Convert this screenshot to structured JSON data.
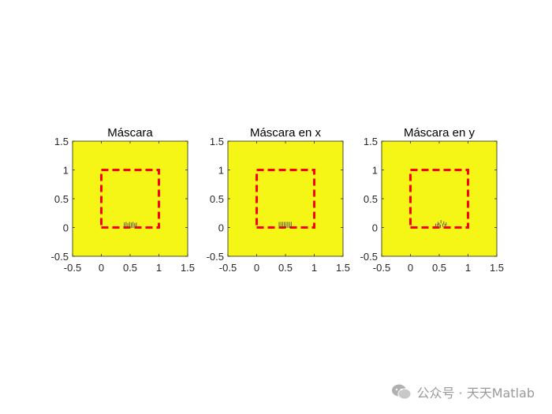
{
  "figure": {
    "background": "#ffffff",
    "axes_facecolor": "#f5f516",
    "mask_edge_color": "#ff0000",
    "mark_color": "#505050"
  },
  "watermark": {
    "text": "公众号 · 天天Matlab",
    "icon": "wechat-icon"
  },
  "chart_data": [
    {
      "type": "heatmap",
      "title": "Máscara",
      "xlabel": "",
      "ylabel": "",
      "xlim": [
        -0.5,
        1.5
      ],
      "ylim": [
        -0.5,
        1.5
      ],
      "xticks": [
        "-0.5",
        "0",
        "0.5",
        "1",
        "1.5"
      ],
      "yticks": [
        "-0.5",
        "0",
        "0.5",
        "1",
        "1.5"
      ],
      "grid": false,
      "mask_outline": [
        [
          0,
          0
        ],
        [
          1,
          0
        ],
        [
          1,
          1
        ],
        [
          0,
          1
        ],
        [
          0,
          0
        ]
      ],
      "mask_outline_style": "dashed",
      "marks": [
        [
          0.4,
          0.0
        ],
        [
          0.4,
          0.04
        ],
        [
          0.43,
          0.0
        ],
        [
          0.43,
          0.05
        ],
        [
          0.46,
          0.0
        ],
        [
          0.46,
          0.03
        ],
        [
          0.49,
          0.0
        ],
        [
          0.49,
          0.05
        ],
        [
          0.52,
          0.0
        ],
        [
          0.52,
          0.04
        ],
        [
          0.55,
          0.0
        ],
        [
          0.55,
          0.05
        ],
        [
          0.58,
          0.0
        ],
        [
          0.58,
          0.03
        ],
        [
          0.61,
          0.0
        ],
        [
          0.61,
          0.04
        ]
      ]
    },
    {
      "type": "heatmap",
      "title": "Máscara en x",
      "xlabel": "",
      "ylabel": "",
      "xlim": [
        -0.5,
        1.5
      ],
      "ylim": [
        -0.5,
        1.5
      ],
      "xticks": [
        "-0.5",
        "0",
        "0.5",
        "1",
        "1.5"
      ],
      "yticks": [
        "-0.5",
        "0",
        "0.5",
        "1",
        "1.5"
      ],
      "grid": false,
      "mask_outline": [
        [
          0,
          0
        ],
        [
          1,
          0
        ],
        [
          1,
          1
        ],
        [
          0,
          1
        ],
        [
          0,
          0
        ]
      ],
      "mask_outline_style": "dashed",
      "marks": [
        [
          0.39,
          0.0
        ],
        [
          0.39,
          0.05
        ],
        [
          0.42,
          0.0
        ],
        [
          0.42,
          0.05
        ],
        [
          0.45,
          0.0
        ],
        [
          0.45,
          0.05
        ],
        [
          0.48,
          0.0
        ],
        [
          0.48,
          0.05
        ],
        [
          0.51,
          0.0
        ],
        [
          0.51,
          0.05
        ],
        [
          0.54,
          0.0
        ],
        [
          0.54,
          0.05
        ],
        [
          0.57,
          0.0
        ],
        [
          0.57,
          0.05
        ],
        [
          0.6,
          0.0
        ],
        [
          0.6,
          0.05
        ]
      ]
    },
    {
      "type": "heatmap",
      "title": "Máscara en y",
      "xlabel": "",
      "ylabel": "",
      "xlim": [
        -0.5,
        1.5
      ],
      "ylim": [
        -0.5,
        1.5
      ],
      "xticks": [
        "-0.5",
        "0",
        "0.5",
        "1",
        "1.5"
      ],
      "yticks": [
        "-0.5",
        "0",
        "0.5",
        "1",
        "1.5"
      ],
      "grid": false,
      "mask_outline": [
        [
          0,
          0
        ],
        [
          1,
          0
        ],
        [
          1,
          1
        ],
        [
          0,
          1
        ],
        [
          0,
          0
        ]
      ],
      "mask_outline_style": "dashed",
      "marks": [
        [
          0.44,
          0.02
        ],
        [
          0.47,
          0.01
        ],
        [
          0.5,
          0.03
        ],
        [
          0.53,
          0.08
        ],
        [
          0.56,
          0.02
        ],
        [
          0.58,
          0.06
        ],
        [
          0.6,
          0.01
        ],
        [
          0.62,
          0.04
        ],
        [
          0.52,
          0.0
        ],
        [
          0.48,
          0.05
        ]
      ]
    }
  ]
}
